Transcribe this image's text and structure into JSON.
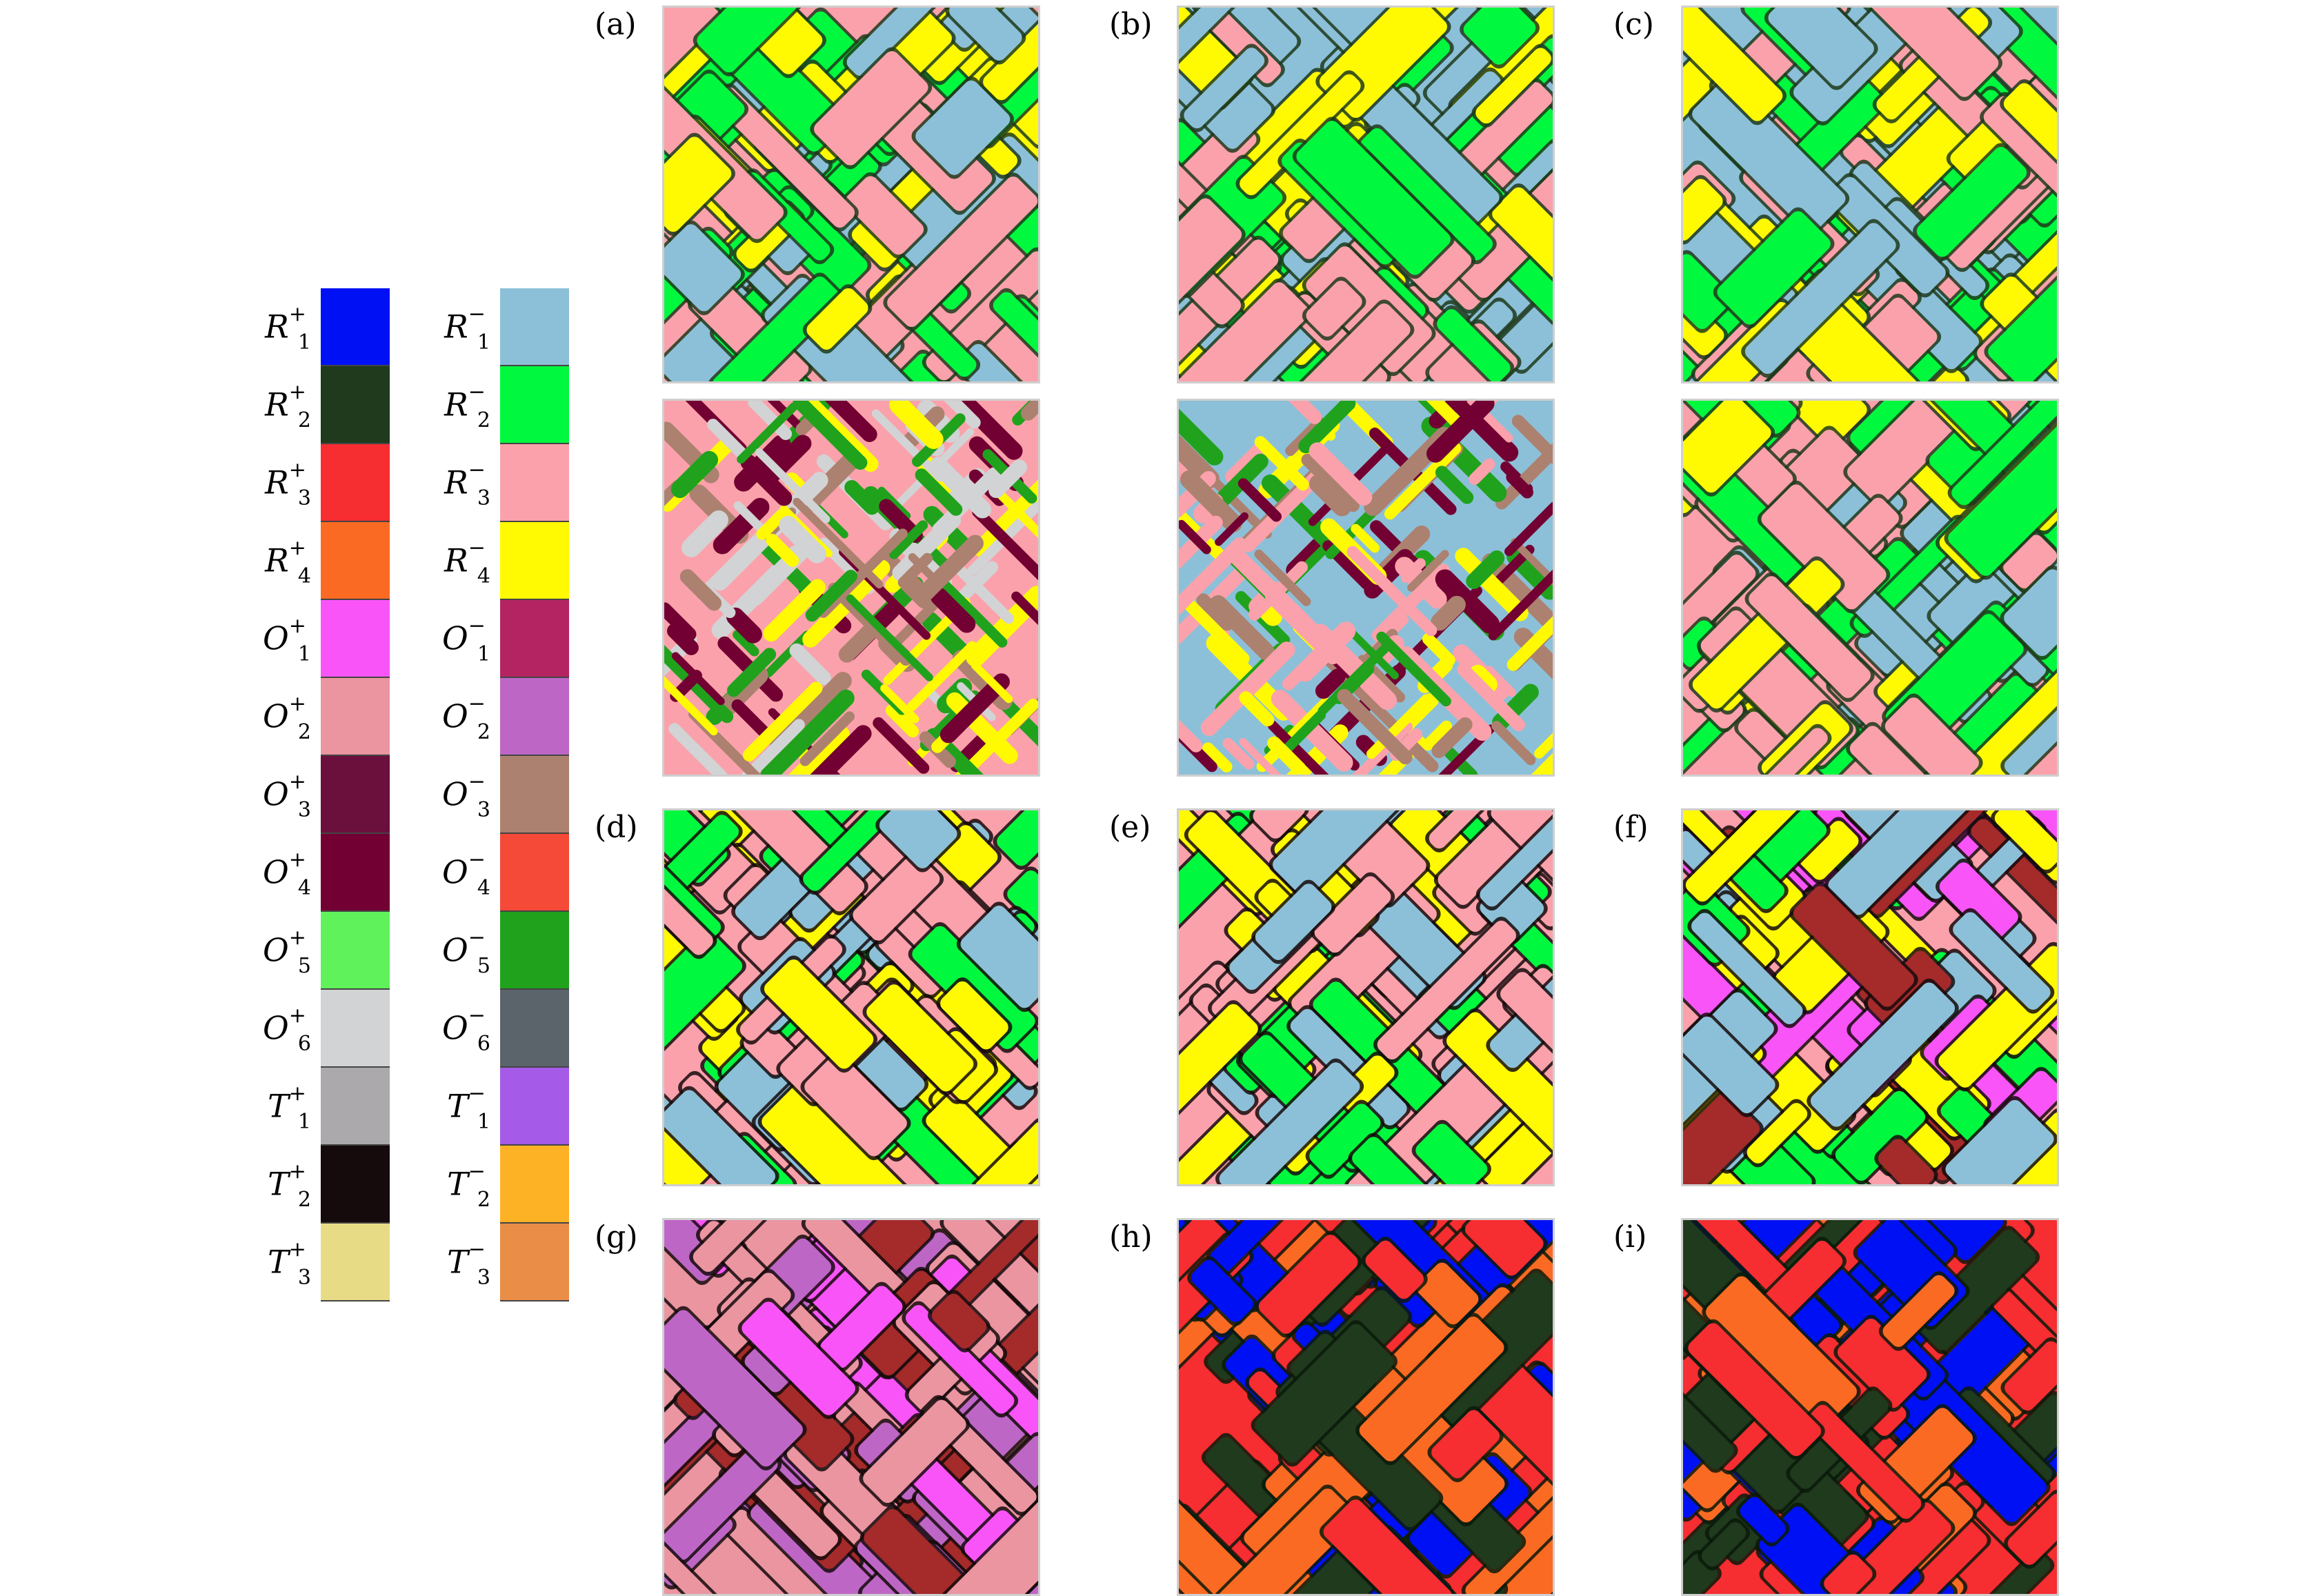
{
  "legend": {
    "left_column": [
      {
        "name": "R",
        "sup": "+",
        "sub": "1",
        "color": "#0010f5"
      },
      {
        "name": "R",
        "sup": "+",
        "sub": "2",
        "color": "#1f3a1c"
      },
      {
        "name": "R",
        "sup": "+",
        "sub": "3",
        "color": "#f62d31"
      },
      {
        "name": "R",
        "sup": "+",
        "sub": "4",
        "color": "#fb6a22"
      },
      {
        "name": "O",
        "sup": "+",
        "sub": "1",
        "color": "#f954f8"
      },
      {
        "name": "O",
        "sup": "+",
        "sub": "2",
        "color": "#ea95a0"
      },
      {
        "name": "O",
        "sup": "+",
        "sub": "3",
        "color": "#6b0f3c"
      },
      {
        "name": "O",
        "sup": "+",
        "sub": "4",
        "color": "#720032"
      },
      {
        "name": "O",
        "sup": "+",
        "sub": "5",
        "color": "#5ff25a"
      },
      {
        "name": "O",
        "sup": "+",
        "sub": "6",
        "color": "#d2d3d4"
      },
      {
        "name": "T",
        "sup": "+",
        "sub": "1",
        "color": "#aba9ac"
      },
      {
        "name": "T",
        "sup": "+",
        "sub": "2",
        "color": "#150a0c"
      },
      {
        "name": "T",
        "sup": "+",
        "sub": "3",
        "color": "#e8db85"
      }
    ],
    "right_column": [
      {
        "name": "R",
        "sup": "−",
        "sub": "1",
        "color": "#8cc0d8"
      },
      {
        "name": "R",
        "sup": "−",
        "sub": "2",
        "color": "#00f93f"
      },
      {
        "name": "R",
        "sup": "−",
        "sub": "3",
        "color": "#fba1ab"
      },
      {
        "name": "R",
        "sup": "−",
        "sub": "4",
        "color": "#fffa01"
      },
      {
        "name": "O",
        "sup": "−",
        "sub": "1",
        "color": "#b42462"
      },
      {
        "name": "O",
        "sup": "−",
        "sub": "2",
        "color": "#be66c6"
      },
      {
        "name": "O",
        "sup": "−",
        "sub": "3",
        "color": "#ac8170"
      },
      {
        "name": "O",
        "sup": "−",
        "sub": "4",
        "color": "#f54a37"
      },
      {
        "name": "O",
        "sup": "−",
        "sub": "5",
        "color": "#20a21d"
      },
      {
        "name": "O",
        "sup": "−",
        "sub": "6",
        "color": "#5b636b"
      },
      {
        "name": "T",
        "sup": "−",
        "sub": "1",
        "color": "#a65ae8"
      },
      {
        "name": "T",
        "sup": "−",
        "sub": "2",
        "color": "#fdb226"
      },
      {
        "name": "T",
        "sup": "−",
        "sub": "3",
        "color": "#e98d47"
      }
    ]
  },
  "panels": [
    {
      "label": "(a)",
      "base": "#fba1ab",
      "colors": [
        "#8cc0d8",
        "#00f93f",
        "#fffa01",
        "#fba1ab"
      ],
      "edge": "#1f3a1c"
    },
    {
      "label": "(b)",
      "base": "#8cc0d8",
      "colors": [
        "#fba1ab",
        "#00f93f",
        "#fffa01",
        "#8cc0d8"
      ],
      "edge": "#1f3a1c"
    },
    {
      "label": "(c)",
      "base": "#8cc0d8",
      "colors": [
        "#fba1ab",
        "#00f93f",
        "#fffa01",
        "#8cc0d8"
      ],
      "edge": "#1f3a1c"
    },
    {
      "label": "(d)",
      "base": "#fba1ab",
      "colors": [
        "#8cc0d8",
        "#00f93f",
        "#fffa01",
        "#fba1ab"
      ],
      "edge": "#150a0c"
    },
    {
      "label": "(e)",
      "base": "#fba1ab",
      "colors": [
        "#8cc0d8",
        "#00f93f",
        "#fffa01",
        "#fba1ab"
      ],
      "edge": "#150a0c"
    },
    {
      "label": "(f)",
      "base": "#fba1ab",
      "colors": [
        "#8cc0d8",
        "#00f93f",
        "#fffa01",
        "#a52a2a",
        "#f954f8"
      ],
      "edge": "#150a0c"
    },
    {
      "label": "(g)",
      "base": "#ea95a0",
      "colors": [
        "#a52a2a",
        "#be66c6",
        "#f954f8",
        "#ea95a0"
      ],
      "edge": "#150a0c"
    },
    {
      "label": "(h)",
      "base": "#f62d31",
      "colors": [
        "#0010f5",
        "#1f3a1c",
        "#fb6a22",
        "#f62d31"
      ],
      "edge": "#0a1a0a"
    },
    {
      "label": "(i)",
      "base": "#f62d31",
      "colors": [
        "#0010f5",
        "#1f3a1c",
        "#fb6a22",
        "#f62d31"
      ],
      "edge": "#0a1a0a"
    }
  ],
  "extra_panels": [
    {
      "base": "#fba1ab",
      "colors": [
        "#720032",
        "#20a21d",
        "#ac8170",
        "#d2d3d4",
        "#fffa01"
      ],
      "edge": "#150a0c",
      "style": "stripes"
    },
    {
      "base": "#8cc0d8",
      "colors": [
        "#720032",
        "#20a21d",
        "#ac8170",
        "#fba1ab",
        "#fffa01"
      ],
      "edge": "#150a0c",
      "style": "stripes"
    },
    {
      "base": "#fba1ab",
      "colors": [
        "#8cc0d8",
        "#00f93f",
        "#fffa01",
        "#fba1ab"
      ],
      "edge": "#1f3a1c",
      "style": "blocks"
    }
  ]
}
